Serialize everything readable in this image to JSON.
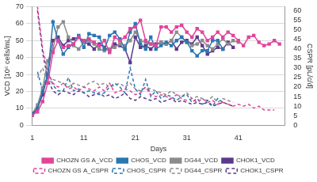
{
  "chart_data": {
    "type": "line",
    "x_label": "Days",
    "y_label": "VCD [10⁶ cells/mL]",
    "y2_label": "CSPR [pL/c/d]",
    "x": [
      1,
      2,
      3,
      4,
      5,
      6,
      7,
      8,
      9,
      10,
      11,
      12,
      13,
      14,
      15,
      16,
      17,
      18,
      19,
      20,
      21,
      22,
      23,
      24,
      25,
      26,
      27,
      28,
      29,
      30,
      31,
      32,
      33,
      34,
      35,
      36,
      37,
      38,
      39,
      40,
      41,
      42,
      43,
      44,
      45,
      46,
      47,
      48,
      49
    ],
    "xlim": [
      1,
      50
    ],
    "xticks": [
      1,
      11,
      21,
      31,
      41
    ],
    "ylim": [
      0,
      70
    ],
    "yticks": [
      0,
      10,
      20,
      30,
      40,
      50,
      60,
      70
    ],
    "y2lim": [
      0,
      62
    ],
    "y2ticks": [
      0,
      5,
      10,
      15,
      20,
      25,
      30,
      35,
      40,
      45,
      50,
      55,
      60
    ],
    "grid": true,
    "legend": "bottom",
    "series": [
      {
        "name": "CHOZN GS A_VCD",
        "color": "#e0449c",
        "marker": "square",
        "line_style": "solid",
        "values": [
          6,
          8,
          14,
          25,
          43,
          50,
          46,
          47,
          48,
          52,
          50,
          51,
          49,
          47,
          50,
          43,
          52,
          50,
          52,
          57,
          58,
          62,
          50,
          48,
          47,
          58,
          58,
          55,
          58,
          59,
          55,
          52,
          57,
          55,
          50,
          52,
          55,
          52,
          55,
          53,
          50,
          47,
          52,
          53,
          49,
          47,
          48,
          50,
          48
        ]
      },
      {
        "name": "CHOS_VCD",
        "color": "#2a78b0",
        "marker": "square",
        "line_style": "solid",
        "values": [
          7,
          10,
          20,
          30,
          61,
          50,
          42,
          46,
          48,
          53,
          46,
          54,
          53,
          52,
          45,
          53,
          55,
          51,
          45,
          55,
          60,
          48,
          45,
          52,
          45,
          47,
          49,
          47,
          50,
          52,
          49,
          44,
          41,
          44,
          44,
          50,
          50,
          45,
          null,
          null,
          null,
          null,
          null,
          null,
          null,
          null,
          null,
          null,
          null
        ]
      },
      {
        "name": "DG44_VCD",
        "color": "#8c8c8c",
        "marker": "square",
        "line_style": "solid",
        "values": [
          7,
          12,
          22,
          38,
          45,
          58,
          61,
          52,
          47,
          45,
          49,
          50,
          48,
          45,
          44,
          45,
          46,
          48,
          47,
          50,
          55,
          50,
          49,
          48,
          47,
          49,
          48,
          50,
          55,
          52,
          49,
          47,
          48,
          50,
          47,
          45,
          48,
          51,
          48,
          50,
          49,
          null,
          null,
          null,
          null,
          null,
          null,
          null,
          null
        ]
      },
      {
        "name": "CHOK1_VCD",
        "color": "#5b3a8c",
        "marker": "square",
        "line_style": "solid",
        "values": [
          6,
          10,
          18,
          30,
          50,
          52,
          47,
          50,
          51,
          52,
          49,
          48,
          45,
          48,
          46,
          44,
          48,
          47,
          45,
          37,
          52,
          46,
          47,
          45,
          48,
          49,
          48,
          50,
          45,
          49,
          50,
          48,
          52,
          47,
          42,
          44,
          46,
          45,
          49,
          46,
          null,
          null,
          null,
          null,
          null,
          null,
          null,
          null,
          null
        ]
      },
      {
        "name": "CHOZN GS A_CSPR",
        "color": "#e0449c",
        "marker": "none",
        "line_style": "dashed",
        "axis": "y2",
        "values": [
          null,
          62,
          40,
          28,
          22,
          20,
          22,
          19,
          20,
          18,
          20,
          19,
          18,
          20,
          18,
          22,
          17,
          18,
          19,
          18,
          16,
          17,
          20,
          16,
          15,
          16,
          15,
          14,
          16,
          14,
          13,
          14,
          12,
          14,
          12,
          13,
          11,
          12,
          11,
          10,
          11,
          10,
          11,
          9,
          10,
          8,
          8,
          8,
          null
        ]
      },
      {
        "name": "CHOS_CSPR",
        "color": "#2a78b0",
        "marker": "none",
        "line_style": "dashed",
        "axis": "y2",
        "values": [
          null,
          28,
          18,
          28,
          21,
          18,
          18,
          25,
          18,
          19,
          17,
          18,
          17,
          16,
          17,
          20,
          22,
          20,
          17,
          30,
          19,
          16,
          24,
          15,
          18,
          14,
          16,
          15,
          13,
          15,
          16,
          12,
          14,
          11,
          13,
          10,
          14,
          12,
          null,
          null,
          null,
          null,
          null,
          null,
          null,
          null,
          null,
          null,
          null
        ]
      },
      {
        "name": "DG44_CSPR",
        "color": "#8c8c8c",
        "marker": "none",
        "line_style": "dashed",
        "axis": "y2",
        "values": [
          null,
          25,
          30,
          22,
          24,
          23,
          22,
          20,
          22,
          21,
          20,
          22,
          23,
          21,
          22,
          20,
          21,
          22,
          20,
          22,
          19,
          18,
          20,
          19,
          18,
          17,
          16,
          18,
          16,
          15,
          17,
          14,
          15,
          14,
          13,
          15,
          12,
          14,
          13,
          12,
          null,
          null,
          null,
          null,
          null,
          null,
          null,
          null,
          null
        ]
      },
      {
        "name": "CHOK1_CSPR",
        "color": "#5b3a8c",
        "marker": "none",
        "line_style": "dashed",
        "axis": "y2",
        "values": [
          null,
          60,
          38,
          24,
          18,
          16,
          18,
          17,
          16,
          18,
          17,
          15,
          16,
          17,
          15,
          16,
          14,
          15,
          17,
          14,
          13,
          15,
          14,
          13,
          14,
          12,
          13,
          14,
          12,
          13,
          12,
          11,
          12,
          11,
          12,
          10,
          11,
          12,
          11,
          10,
          null,
          null,
          null,
          null,
          null,
          null,
          null,
          null,
          null
        ]
      }
    ]
  }
}
